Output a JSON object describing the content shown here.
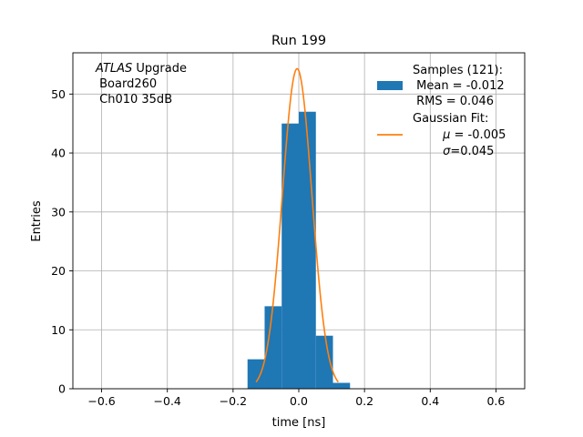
{
  "chart_data": {
    "type": "bar",
    "title": "Run 199",
    "xlabel": "time [ns]",
    "ylabel": "Entries",
    "xlim": [
      -0.6875,
      0.6875
    ],
    "ylim": [
      0,
      57
    ],
    "grid": true,
    "xticks": [
      -0.6,
      -0.4,
      -0.2,
      0.0,
      0.2,
      0.4,
      0.6
    ],
    "xtick_labels": [
      "−0.6",
      "−0.4",
      "−0.2",
      "0.0",
      "0.2",
      "0.4",
      "0.6"
    ],
    "yticks": [
      0,
      10,
      20,
      30,
      40,
      50
    ],
    "ytick_labels": [
      "0",
      "10",
      "20",
      "30",
      "40",
      "50"
    ],
    "histogram": {
      "name": "Samples",
      "color": "#1f77b4",
      "bin_edges": [
        -0.156,
        -0.104,
        -0.052,
        0.0,
        0.052,
        0.104,
        0.156
      ],
      "values": [
        5,
        14,
        45,
        47,
        9,
        1
      ]
    },
    "fit": {
      "name": "Gaussian Fit",
      "color": "#ff7f0e",
      "mu": -0.005,
      "sigma": 0.045,
      "amplitude": 54.3,
      "x_range": [
        -0.13,
        0.12
      ]
    },
    "legend": {
      "placement": "top-right",
      "hist_lines": [
        "Samples (121):",
        " Mean = -0.012",
        " RMS = 0.046"
      ],
      "fit_title": "Gaussian Fit:",
      "fit_mu_symbol": "μ",
      "fit_mu_value": " = -0.005",
      "fit_sigma_symbol": "σ",
      "fit_sigma_value": "=0.045"
    },
    "annotation": {
      "italic": "ATLAS",
      "rest": " Upgrade",
      "line2": " Board260",
      "line3": " Ch010 35dB"
    }
  }
}
